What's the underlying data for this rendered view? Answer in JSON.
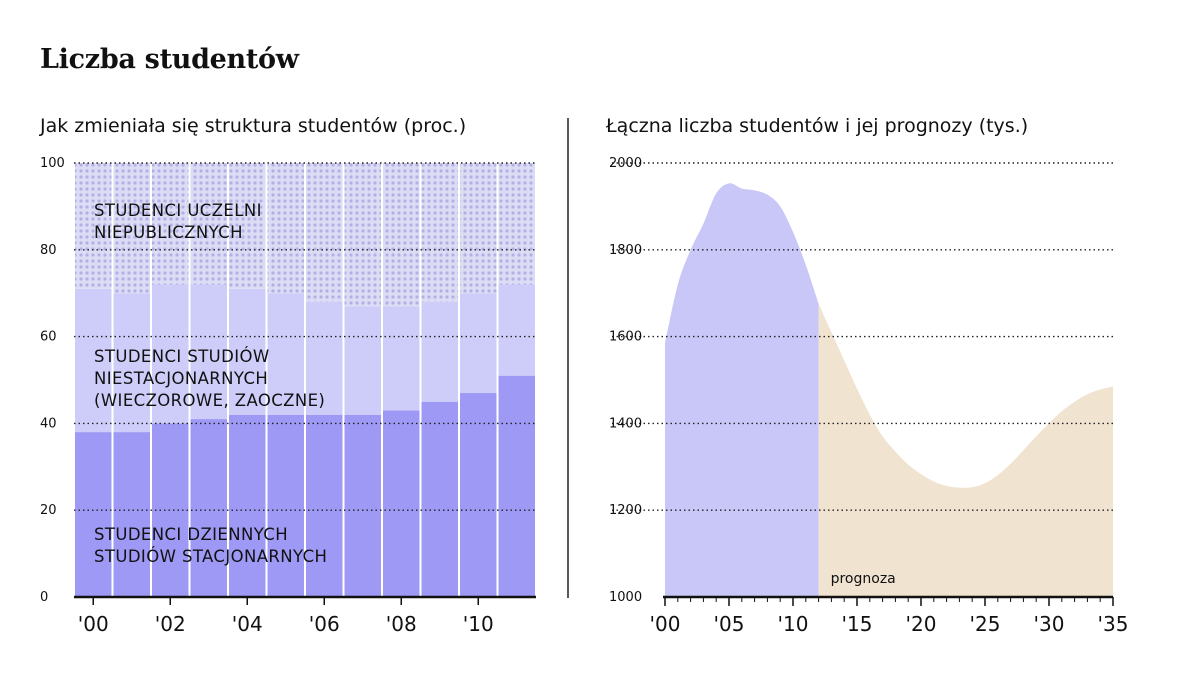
{
  "title": "Liczba studentów",
  "chart_data": [
    {
      "type": "bar",
      "stacked": true,
      "title": "Jak zmieniała się struktura studentów (proc.)",
      "categories": [
        "'00",
        "'01",
        "'02",
        "'03",
        "'04",
        "'05",
        "'06",
        "'07",
        "'08",
        "'09",
        "'10",
        "'11"
      ],
      "x_tick_labels": [
        "'00",
        "'02",
        "'04",
        "'06",
        "'08",
        "'10"
      ],
      "ylim": [
        0,
        100
      ],
      "y_ticks": [
        0,
        20,
        40,
        60,
        80,
        100
      ],
      "grid": "dotted horizontal",
      "series": [
        {
          "name": "STUDENCI DZIENNYCH STUDIÓW STACJONARNYCH",
          "label_lines": [
            "STUDENCI DZIENNYCH",
            "STUDIÓW STACJONARNYCH"
          ],
          "color": "#9e99f5",
          "values": [
            38,
            38,
            40,
            41,
            42,
            42,
            42,
            42,
            43,
            45,
            47,
            51
          ]
        },
        {
          "name": "STUDENCI STUDIÓW NIESTACJONARNYCH (WIECZOROWE, ZAOCZNE)",
          "label_lines": [
            "STUDENCI STUDIÓW",
            "NIESTACJONARNYCH",
            "(WIECZOROWE, ZAOCZNE)"
          ],
          "color": "#cecdf9",
          "values": [
            33,
            32,
            32,
            31,
            29,
            28,
            26,
            25,
            24,
            23,
            23,
            21
          ]
        },
        {
          "name": "STUDENCI UCZELNI NIEPUBLICZNYCH",
          "label_lines": [
            "STUDENCI UCZELNI",
            "NIEPUBLICZNYCH"
          ],
          "color": "#dcdcf5",
          "dot_color": "#b3b0e6",
          "values": [
            29,
            30,
            28,
            28,
            29,
            30,
            32,
            33,
            33,
            32,
            30,
            28
          ]
        }
      ]
    },
    {
      "type": "area",
      "title": "Łączna liczba studentów i jej prognozy (tys.)",
      "xlim": [
        2000,
        2035
      ],
      "x_tick_labels": [
        "'00",
        "'05",
        "'10",
        "'15",
        "'20",
        "'25",
        "'30",
        "'35"
      ],
      "x_tick_values": [
        2000,
        2005,
        2010,
        2015,
        2020,
        2025,
        2030,
        2035
      ],
      "ylim": [
        1000,
        2000
      ],
      "y_ticks": [
        1000,
        1200,
        1400,
        1600,
        1800,
        2000
      ],
      "grid": "dotted horizontal",
      "forecast_start": 2012,
      "forecast_label": "prognoza",
      "colors": {
        "actual": "#c9c7f8",
        "forecast": "#f0e3cf"
      },
      "x": [
        2000,
        2001,
        2002,
        2003,
        2004,
        2005,
        2006,
        2007,
        2008,
        2009,
        2010,
        2011,
        2012,
        2013,
        2014,
        2015,
        2016,
        2017,
        2018,
        2019,
        2020,
        2021,
        2022,
        2023,
        2024,
        2025,
        2026,
        2027,
        2028,
        2029,
        2030,
        2031,
        2032,
        2033,
        2034,
        2035
      ],
      "y": [
        1585,
        1720,
        1800,
        1860,
        1930,
        1953,
        1941,
        1937,
        1927,
        1900,
        1841,
        1765,
        1676,
        1610,
        1545,
        1480,
        1420,
        1370,
        1335,
        1305,
        1283,
        1266,
        1256,
        1252,
        1253,
        1262,
        1281,
        1307,
        1338,
        1370,
        1400,
        1428,
        1450,
        1467,
        1478,
        1485
      ]
    }
  ]
}
